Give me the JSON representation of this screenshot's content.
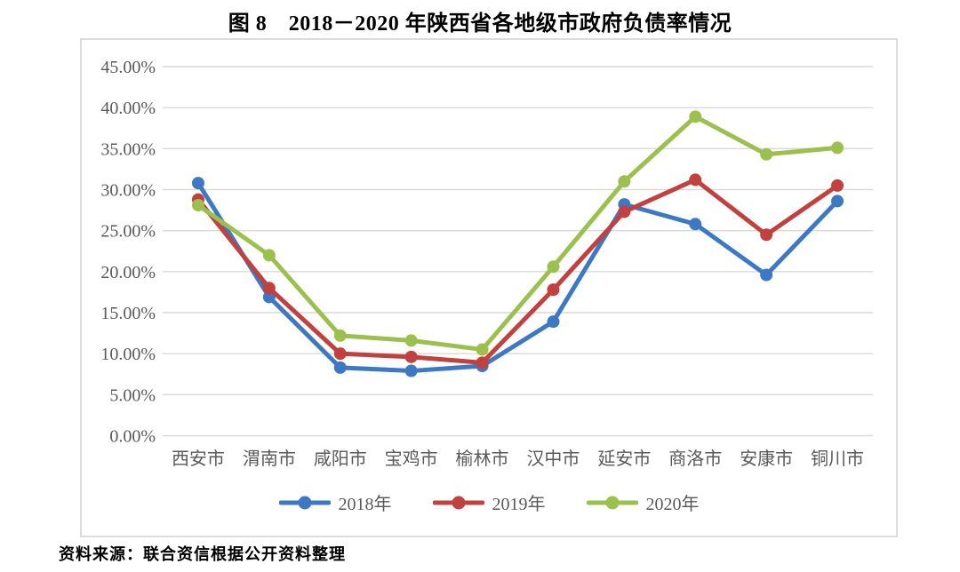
{
  "title": "图 8　2018－2020 年陕西省各地级市政府负债率情况",
  "source": "资料来源：联合资信根据公开资料整理",
  "colors": {
    "grid": "#d9d9d9",
    "frame_border": "#dcdcdc",
    "axis_text": "#595959",
    "series_2018": "#3c78c4",
    "series_2019": "#c2403d",
    "series_2020": "#9cc04e"
  },
  "chart_data": {
    "type": "line",
    "title": "图 8　2018－2020 年陕西省各地级市政府负债率情况",
    "categories": [
      "西安市",
      "渭南市",
      "咸阳市",
      "宝鸡市",
      "榆林市",
      "汉中市",
      "延安市",
      "商洛市",
      "安康市",
      "铜川市"
    ],
    "series": [
      {
        "name": "2018年",
        "color": "#3c78c4",
        "values": [
          30.8,
          16.9,
          8.3,
          7.9,
          8.5,
          13.9,
          28.2,
          25.8,
          19.6,
          28.6
        ]
      },
      {
        "name": "2019年",
        "color": "#c2403d",
        "values": [
          28.8,
          18.0,
          10.0,
          9.6,
          8.9,
          17.8,
          27.3,
          31.2,
          24.5,
          30.5
        ]
      },
      {
        "name": "2020年",
        "color": "#9cc04e",
        "values": [
          28.1,
          22.0,
          12.2,
          11.6,
          10.5,
          20.6,
          31.0,
          38.9,
          34.3,
          35.1
        ]
      }
    ],
    "xlabel": "",
    "ylabel": "",
    "ylim": [
      0,
      45
    ],
    "y_tick_step": 5,
    "y_tick_labels": [
      "0.00%",
      "5.00%",
      "10.00%",
      "15.00%",
      "20.00%",
      "25.00%",
      "30.00%",
      "35.00%",
      "40.00%",
      "45.00%"
    ],
    "grid": true,
    "legend_position": "bottom"
  }
}
